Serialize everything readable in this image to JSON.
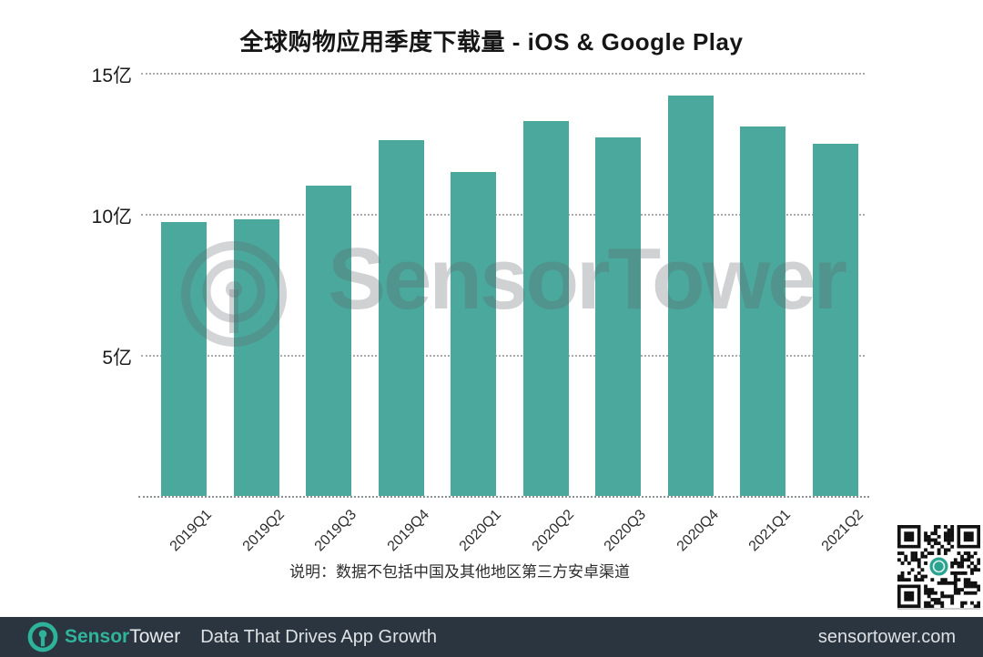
{
  "title": "全球购物应用季度下载量 - iOS & Google Play",
  "chart_data": {
    "type": "bar",
    "title": "全球购物应用季度下载量 - iOS & Google Play",
    "categories": [
      "2019Q1",
      "2019Q2",
      "2019Q3",
      "2019Q4",
      "2020Q1",
      "2020Q2",
      "2020Q3",
      "2020Q4",
      "2021Q1",
      "2021Q2"
    ],
    "values": [
      9.7,
      9.8,
      11.0,
      12.6,
      11.5,
      13.3,
      12.7,
      14.2,
      13.1,
      12.5
    ],
    "unit": "亿",
    "xlabel": "",
    "ylabel": "",
    "ylim": [
      0,
      15
    ],
    "yticks": [
      {
        "value": 15,
        "label": "15亿"
      },
      {
        "value": 10,
        "label": "10亿"
      },
      {
        "value": 5,
        "label": "5亿"
      }
    ],
    "grid": "horizontal-dotted",
    "legend": "none",
    "bar_color": "#4ba89d"
  },
  "caption": "说明：数据不包括中国及其他地区第三方安卓渠道",
  "watermark": {
    "text": "SensorTower",
    "logo": "sensortower-ring-icon"
  },
  "qr": {
    "name": "qr-code",
    "center_logo": "sensortower-icon",
    "logo_color": "#2aa391"
  },
  "footer": {
    "brand_sensor": "Sensor",
    "brand_tower": "Tower",
    "tagline": "Data That Drives App Growth",
    "website": "sensortower.com",
    "bg_color": "#2b3540",
    "accent_color": "#30b49b"
  }
}
